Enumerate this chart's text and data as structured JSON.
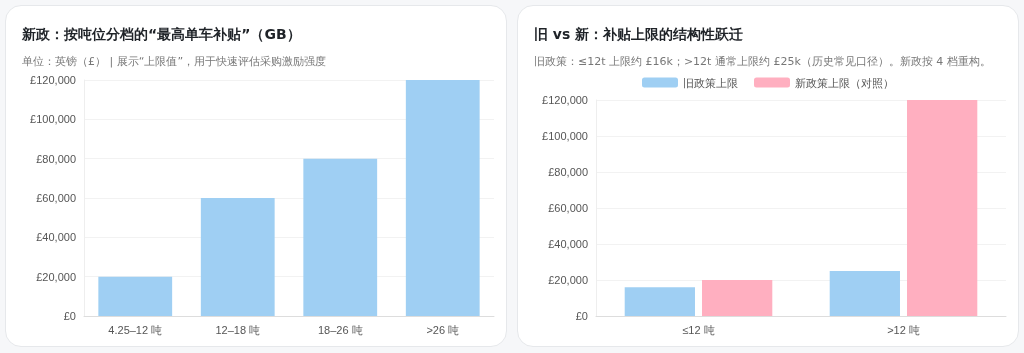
{
  "chart_data": [
    {
      "type": "bar",
      "title": "新政：按吨位分档的“最高单车补贴”（GB）",
      "subtitle": "单位：英镑（£） | 展示“上限值”，用于快速评估采购激励强度",
      "categories": [
        "4.25–12 吨",
        "12–18 吨",
        "18–26 吨",
        ">26 吨"
      ],
      "series": [
        {
          "color": "#9fcff3",
          "values": [
            20000,
            60000,
            80000,
            120000
          ]
        }
      ],
      "ylim": [
        0,
        120000
      ],
      "yticks": [
        {
          "value": 0,
          "label": "£0"
        },
        {
          "value": 20000,
          "label": "£20,000"
        },
        {
          "value": 40000,
          "label": "£40,000"
        },
        {
          "value": 60000,
          "label": "£60,000"
        },
        {
          "value": 80000,
          "label": "£80,000"
        },
        {
          "value": 100000,
          "label": "£100,000"
        },
        {
          "value": 120000,
          "label": "£120,000"
        }
      ],
      "grid": "y",
      "legend": false
    },
    {
      "type": "bar",
      "title": "旧 vs 新：补贴上限的结构性跃迁",
      "subtitle": "旧政策：≤12t 上限约 £16k；>12t 通常上限约 £25k（历史常见口径）。新政按 4 档重构。",
      "categories": [
        "≤12 吨",
        ">12 吨"
      ],
      "series": [
        {
          "name": "旧政策上限",
          "color": "#9fcff3",
          "values": [
            16000,
            25000
          ]
        },
        {
          "name": "新政策上限（对照）",
          "color": "#ffafc0",
          "values": [
            20000,
            120000
          ]
        }
      ],
      "ylim": [
        0,
        120000
      ],
      "yticks": [
        {
          "value": 0,
          "label": "£0"
        },
        {
          "value": 20000,
          "label": "£20,000"
        },
        {
          "value": 40000,
          "label": "£40,000"
        },
        {
          "value": 60000,
          "label": "£60,000"
        },
        {
          "value": 80000,
          "label": "£80,000"
        },
        {
          "value": 100000,
          "label": "£100,000"
        },
        {
          "value": 120000,
          "label": "£120,000"
        }
      ],
      "grid": "y",
      "legend": "top"
    }
  ]
}
